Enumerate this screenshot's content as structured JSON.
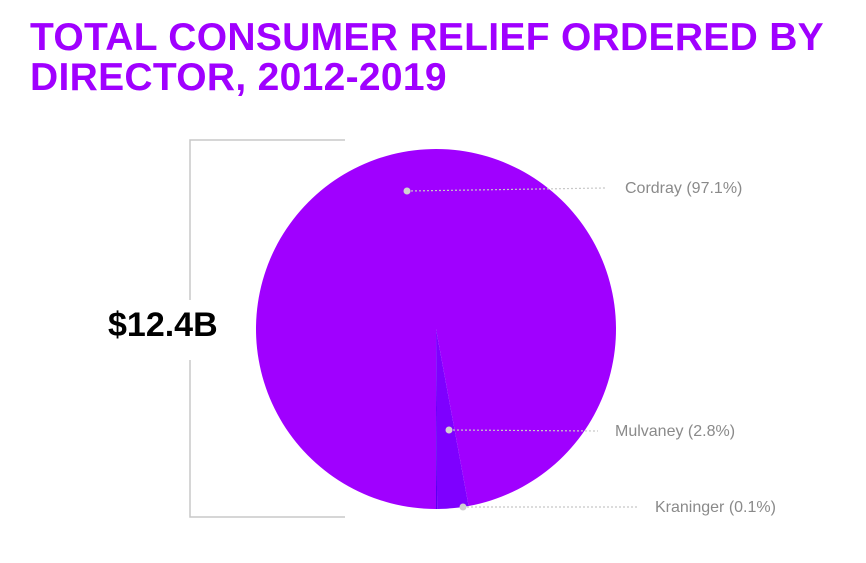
{
  "chart_data": {
    "type": "pie",
    "title": "TOTAL CONSUMER RELIEF ORDERED BY DIRECTOR, 2012-2019",
    "annotation": "$12.4B",
    "labels": [
      "Cordray (97.1%)",
      "Mulvaney (2.8%)",
      "Kraninger (0.1%)"
    ],
    "values": [
      97.1,
      2.8,
      0.1
    ],
    "colors": [
      "#a000ff",
      "#7e00ff",
      "#5a00f0"
    ]
  }
}
